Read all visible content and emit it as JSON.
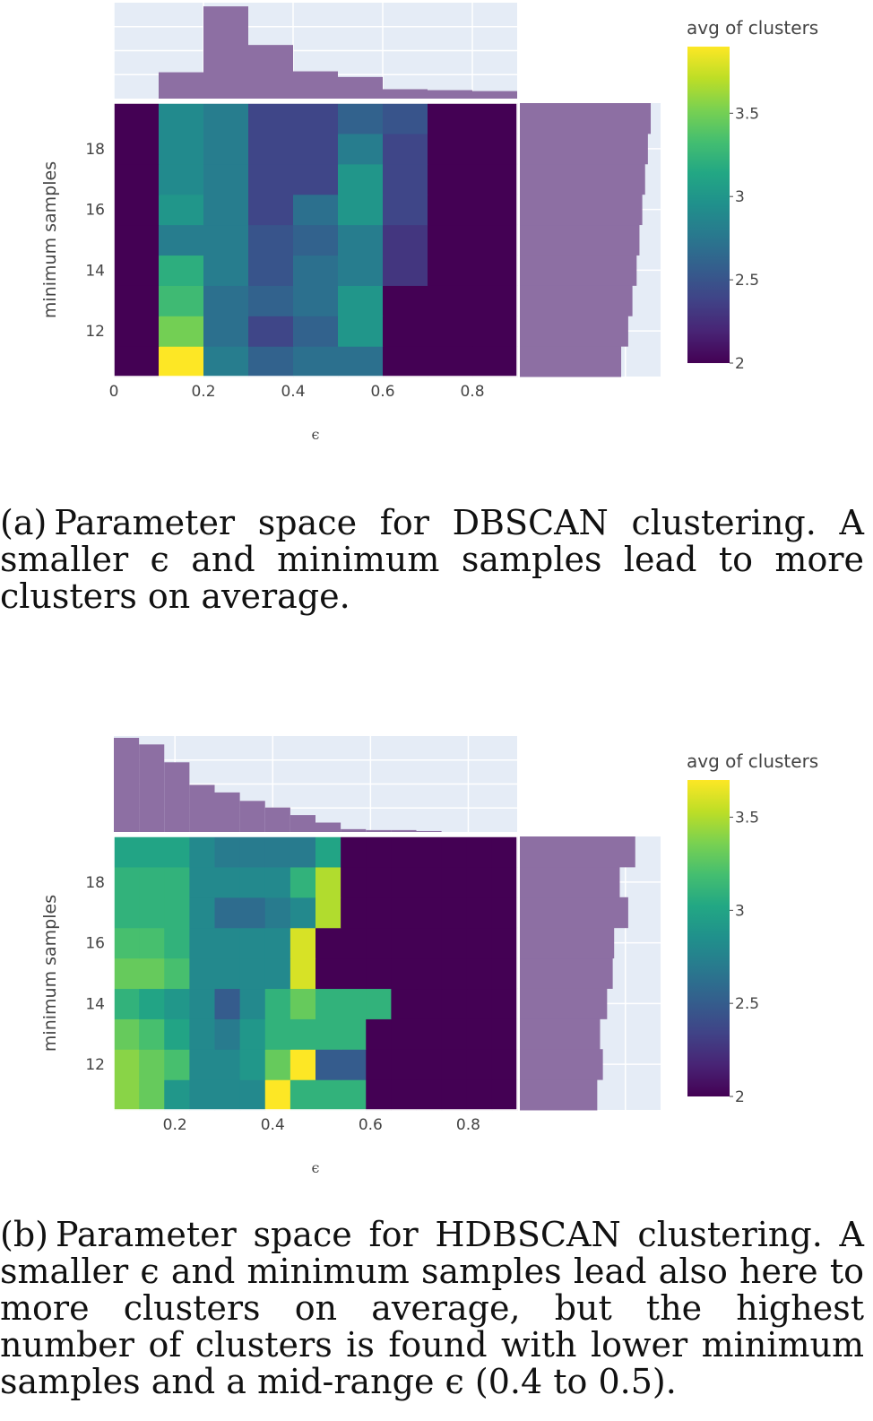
{
  "chart_data": [
    {
      "type": "heatmap",
      "name": "DBSCAN",
      "xlabel": "ϵ",
      "ylabel": "minimum samples",
      "colorbar": {
        "title": "avg of clusters",
        "range": [
          2,
          3.9
        ],
        "ticks": [
          "2",
          "2.5",
          "3",
          "3.5"
        ]
      },
      "x_ticks": [
        {
          "v": 0,
          "label": "0"
        },
        {
          "v": 0.2,
          "label": "0.2"
        },
        {
          "v": 0.4,
          "label": "0.4"
        },
        {
          "v": 0.6,
          "label": "0.6"
        },
        {
          "v": 0.8,
          "label": "0.8"
        }
      ],
      "y_ticks": [
        {
          "v": 12,
          "label": "12"
        },
        {
          "v": 14,
          "label": "14"
        },
        {
          "v": 16,
          "label": "16"
        },
        {
          "v": 18,
          "label": "18"
        }
      ],
      "xlim": [
        0,
        0.9
      ],
      "ylim": [
        10.5,
        19.5
      ],
      "x": [
        0.05,
        0.15,
        0.25,
        0.35,
        0.45,
        0.55,
        0.65,
        0.75,
        0.85
      ],
      "y": [
        11,
        12,
        13,
        14,
        15,
        16,
        17,
        18,
        19
      ],
      "z": [
        [
          2.0,
          3.9,
          2.8,
          2.6,
          2.7,
          2.7,
          2.0,
          2.0,
          2.0
        ],
        [
          2.0,
          3.5,
          2.7,
          2.4,
          2.6,
          3.0,
          2.0,
          2.0,
          2.0
        ],
        [
          2.0,
          3.3,
          2.7,
          2.6,
          2.7,
          3.0,
          2.0,
          2.0,
          2.0
        ],
        [
          2.0,
          3.2,
          2.8,
          2.5,
          2.7,
          2.8,
          2.3,
          2.0,
          2.0
        ],
        [
          2.0,
          2.8,
          2.8,
          2.5,
          2.6,
          2.8,
          2.3,
          2.0,
          2.0
        ],
        [
          2.0,
          3.0,
          2.8,
          2.4,
          2.7,
          3.0,
          2.4,
          2.0,
          2.0
        ],
        [
          2.0,
          2.9,
          2.8,
          2.4,
          2.4,
          3.0,
          2.4,
          2.0,
          2.0
        ],
        [
          2.0,
          2.9,
          2.8,
          2.4,
          2.4,
          2.8,
          2.4,
          2.0,
          2.0
        ],
        [
          2.0,
          2.9,
          2.8,
          2.4,
          2.4,
          2.6,
          2.5,
          2.0,
          2.0
        ]
      ],
      "top_histogram": [
        0,
        28,
        98,
        57,
        29,
        23,
        10,
        9,
        8
      ],
      "top_histogram_max": 100,
      "right_histogram": [
        0.72,
        0.77,
        0.8,
        0.83,
        0.85,
        0.87,
        0.89,
        0.91,
        0.93
      ],
      "right_histogram_max": 1.0
    },
    {
      "type": "heatmap",
      "name": "HDBSCAN",
      "xlabel": "ϵ",
      "ylabel": "minimum samples",
      "colorbar": {
        "title": "avg of clusters",
        "range": [
          2,
          3.7
        ],
        "ticks": [
          "2",
          "2.5",
          "3",
          "3.5"
        ]
      },
      "x_ticks": [
        {
          "v": 0.2,
          "label": "0.2"
        },
        {
          "v": 0.4,
          "label": "0.4"
        },
        {
          "v": 0.6,
          "label": "0.6"
        },
        {
          "v": 0.8,
          "label": "0.8"
        }
      ],
      "y_ticks": [
        {
          "v": 12,
          "label": "12"
        },
        {
          "v": 14,
          "label": "14"
        },
        {
          "v": 16,
          "label": "16"
        },
        {
          "v": 18,
          "label": "18"
        }
      ],
      "xlim": [
        0.075,
        0.9
      ],
      "ylim": [
        10.5,
        19.5
      ],
      "x": [
        0.1,
        0.15,
        0.2,
        0.25,
        0.3,
        0.35,
        0.4,
        0.45,
        0.5,
        0.55,
        0.6,
        0.65,
        0.7,
        0.75,
        0.8,
        0.85
      ],
      "y": [
        11,
        12,
        13,
        14,
        15,
        16,
        17,
        18,
        19
      ],
      "z": [
        [
          3.4,
          3.3,
          2.9,
          2.8,
          2.8,
          2.8,
          3.7,
          3.1,
          3.1,
          3.1,
          2.0,
          2.0,
          2.0,
          2.0,
          2.0,
          2.0
        ],
        [
          3.4,
          3.3,
          3.2,
          2.8,
          2.8,
          2.9,
          3.3,
          3.7,
          2.5,
          2.5,
          2.0,
          2.0,
          2.0,
          2.0,
          2.0,
          2.0
        ],
        [
          3.3,
          3.2,
          3.0,
          2.8,
          2.7,
          2.9,
          3.1,
          3.1,
          3.1,
          3.1,
          2.0,
          2.0,
          2.0,
          2.0,
          2.0,
          2.0
        ],
        [
          3.1,
          3.0,
          2.9,
          2.8,
          2.5,
          2.8,
          3.1,
          3.3,
          3.1,
          3.1,
          3.1,
          2.0,
          2.0,
          2.0,
          2.0,
          2.0
        ],
        [
          3.3,
          3.3,
          3.2,
          2.8,
          2.8,
          2.8,
          2.8,
          3.6,
          2.0,
          2.0,
          2.0,
          2.0,
          2.0,
          2.0,
          2.0,
          2.0
        ],
        [
          3.2,
          3.2,
          3.1,
          2.8,
          2.8,
          2.8,
          2.8,
          3.6,
          2.0,
          2.0,
          2.0,
          2.0,
          2.0,
          2.0,
          2.0,
          2.0
        ],
        [
          3.1,
          3.1,
          3.1,
          2.8,
          2.6,
          2.6,
          2.7,
          2.8,
          3.5,
          2.0,
          2.0,
          2.0,
          2.0,
          2.0,
          2.0,
          2.0
        ],
        [
          3.1,
          3.1,
          3.1,
          2.8,
          2.8,
          2.8,
          2.8,
          3.1,
          3.5,
          2.0,
          2.0,
          2.0,
          2.0,
          2.0,
          2.0,
          2.0
        ],
        [
          3.0,
          3.0,
          3.0,
          2.8,
          2.7,
          2.7,
          2.7,
          2.7,
          3.0,
          2.0,
          2.0,
          2.0,
          2.0,
          2.0,
          2.0,
          2.0
        ]
      ],
      "top_histogram": [
        100,
        93,
        74,
        50,
        42,
        33,
        26,
        18,
        10,
        3,
        2,
        2,
        1,
        0,
        0,
        0
      ],
      "top_histogram_max": 100,
      "right_histogram": [
        0.55,
        0.59,
        0.57,
        0.62,
        0.66,
        0.67,
        0.77,
        0.71,
        0.82
      ],
      "right_histogram_max": 1.0
    }
  ],
  "captions": {
    "a": {
      "label": "(a)",
      "before": "Parameter space for DBSCAN clustering. A smaller ",
      "symbol": "ϵ",
      "after": " and minimum samples lead to more clusters on average."
    },
    "b": {
      "label": "(b)",
      "before": "Parameter space for HDBSCAN clustering. A smaller ",
      "symbol": "ϵ",
      "middle": " and minimum samples lead also here to more clusters on average, but the highest number of clusters is found with lower minimum samples and a mid-range ",
      "symbol2": "ϵ",
      "after": " (0.4 to 0.5)."
    }
  },
  "colors": {
    "plot_bg": "#e5ecf6",
    "histogram": "#8d6fa3",
    "axis_text": "#444444"
  }
}
